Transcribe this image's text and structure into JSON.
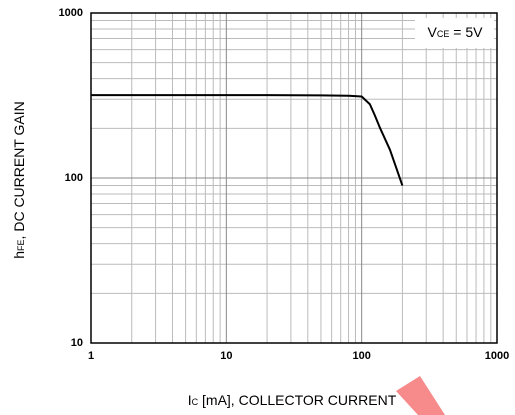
{
  "chart_data": {
    "type": "line",
    "x_label": [
      "I",
      "C",
      " [mA], COLLECTOR CURRENT"
    ],
    "y_label": [
      "h",
      "FE",
      ", DC CURRENT GAIN"
    ],
    "annotation": [
      "V",
      "CE",
      " = 5V"
    ],
    "x": [
      1,
      2,
      5,
      10,
      20,
      50,
      80,
      100,
      115,
      125,
      137,
      162,
      200
    ],
    "series": [
      {
        "color": "#000000",
        "values": [
          318,
          318,
          318,
          318,
          318,
          317,
          315,
          312,
          280,
          240,
          200,
          148,
          90
        ]
      }
    ],
    "xlim": [
      1,
      1000
    ],
    "xticks": [
      1,
      10,
      100,
      1000
    ],
    "ylim": [
      10,
      1000
    ],
    "yticks": [
      10,
      100,
      1000
    ],
    "xlog": true,
    "ylog": true,
    "grid": true
  }
}
